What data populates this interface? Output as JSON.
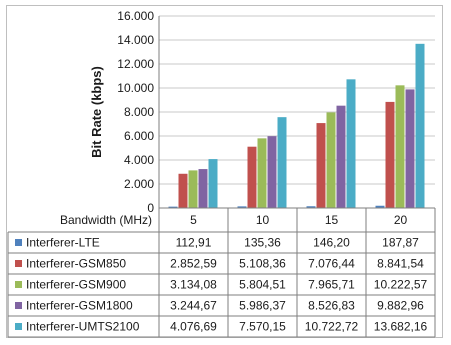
{
  "chart_data": {
    "type": "bar",
    "title": "",
    "ylabel": "Bit Rate (kbps)",
    "xlabel": "Bandwidth (MHz)",
    "ylim": [
      0,
      16000
    ],
    "yticks": [
      "0",
      "2.000",
      "4.000",
      "6.000",
      "8.000",
      "10.000",
      "12.000",
      "14.000",
      "16.000"
    ],
    "categories": [
      "5",
      "10",
      "15",
      "20"
    ],
    "grid": true,
    "legend": "data-table",
    "series": [
      {
        "name": "Interferer-LTE",
        "color": "#4f81bd",
        "values": [
          112.91,
          135.36,
          146.2,
          187.87
        ],
        "labels": [
          "112,91",
          "135,36",
          "146,20",
          "187,87"
        ]
      },
      {
        "name": "Interferer-GSM850",
        "color": "#c0504d",
        "values": [
          2852.59,
          5108.36,
          7076.44,
          8841.54
        ],
        "labels": [
          "2.852,59",
          "5.108,36",
          "7.076,44",
          "8.841,54"
        ]
      },
      {
        "name": "Interferer-GSM900",
        "color": "#9bbb59",
        "values": [
          3134.08,
          5804.51,
          7965.71,
          10222.57
        ],
        "labels": [
          "3.134,08",
          "5.804,51",
          "7.965,71",
          "10.222,57"
        ]
      },
      {
        "name": "Interferer-GSM1800",
        "color": "#8064a2",
        "values": [
          3244.67,
          5986.37,
          8526.83,
          9882.96
        ],
        "labels": [
          "3.244,67",
          "5.986,37",
          "8.526,83",
          "9.882,96"
        ]
      },
      {
        "name": "Interferer-UMTS2100",
        "color": "#4bacc6",
        "values": [
          4076.69,
          7570.15,
          10722.72,
          13682.16
        ],
        "labels": [
          "4.076,69",
          "7.570,15",
          "10.722,72",
          "13.682,16"
        ]
      }
    ]
  }
}
